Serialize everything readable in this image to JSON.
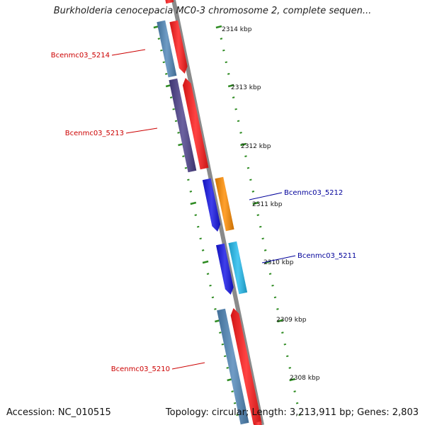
{
  "title": "Burkholderia cenocepacia MC0-3 chromosome 2, complete sequen...",
  "footer": {
    "accession": "Accession: NC_010515",
    "topology": "Topology: circular; Length: 3,213,911 bp; Genes: 2,803"
  },
  "colors": {
    "backbone": "#8a8a8a",
    "tick": "#2e8b22",
    "label_left": "#cc0000",
    "label_right": "#00009a"
  },
  "ruler": {
    "unit": "kbp",
    "labels": [
      "2314 kbp",
      "2313 kbp",
      "2312 kbp",
      "2311 kbp",
      "2310 kbp",
      "2309 kbp",
      "2308 kbp"
    ]
  },
  "genes": [
    {
      "label": "Bcenmc03_5214",
      "side": "left"
    },
    {
      "label": "Bcenmc03_5213",
      "side": "left"
    },
    {
      "label": "Bcenmc03_5212",
      "side": "right"
    },
    {
      "label": "Bcenmc03_5211",
      "side": "right"
    },
    {
      "label": "Bcenmc03_5210",
      "side": "left"
    }
  ],
  "features": [
    {
      "name": "cds-top-red",
      "color": "#ff1a1a"
    },
    {
      "name": "gene-5214-blue",
      "color": "#4f86b8"
    },
    {
      "name": "gene-5214-red",
      "color": "#ff1a1a"
    },
    {
      "name": "gene-5213-purple",
      "color": "#4b3f8a"
    },
    {
      "name": "gene-5213-red",
      "color": "#ff1a1a"
    },
    {
      "name": "gene-5212-blue",
      "color": "#1515e6"
    },
    {
      "name": "gene-5212-orange",
      "color": "#ff8c00"
    },
    {
      "name": "gene-5211-blue",
      "color": "#1515e6"
    },
    {
      "name": "gene-5211-cyan",
      "color": "#22bbee"
    },
    {
      "name": "gene-5210-blue",
      "color": "#4f86b8"
    },
    {
      "name": "gene-5210-red",
      "color": "#ff1a1a"
    },
    {
      "name": "cds-bottom-red",
      "color": "#ff1a1a"
    }
  ]
}
